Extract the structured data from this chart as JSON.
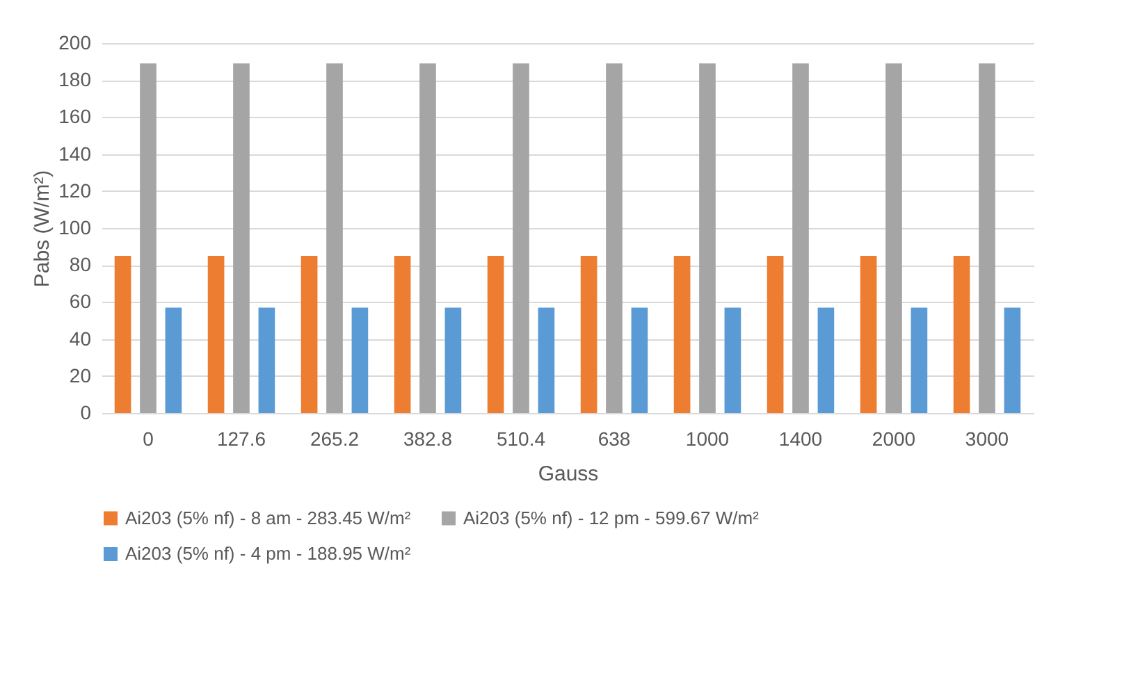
{
  "chart_data": {
    "type": "bar",
    "xlabel": "Gauss",
    "ylabel": "Pabs (W/m²)",
    "categories": [
      "0",
      "127.6",
      "265.2",
      "382.8",
      "510.4",
      "638",
      "1000",
      "1400",
      "2000",
      "3000"
    ],
    "series": [
      {
        "name": "Ai203 (5% nf) - 8 am - 283.45 W/m²",
        "color": "#ed7d31",
        "values": [
          85,
          85,
          85,
          85,
          85,
          85,
          85,
          85,
          85,
          85
        ]
      },
      {
        "name": "Ai203 (5% nf) - 12 pm - 599.67 W/m²",
        "color": "#a5a5a5",
        "values": [
          189,
          189,
          189,
          189,
          189,
          189,
          189,
          189,
          189,
          189
        ]
      },
      {
        "name": "Ai203 (5% nf) - 4 pm - 188.95 W/m²",
        "color": "#5b9bd5",
        "values": [
          57,
          57,
          57,
          57,
          57,
          57,
          57,
          57,
          57,
          57
        ]
      }
    ],
    "ylim": [
      0,
      200
    ],
    "yticks": [
      0,
      20,
      40,
      60,
      80,
      100,
      120,
      140,
      160,
      180,
      200
    ],
    "grid": "y",
    "legend": "bottom"
  }
}
